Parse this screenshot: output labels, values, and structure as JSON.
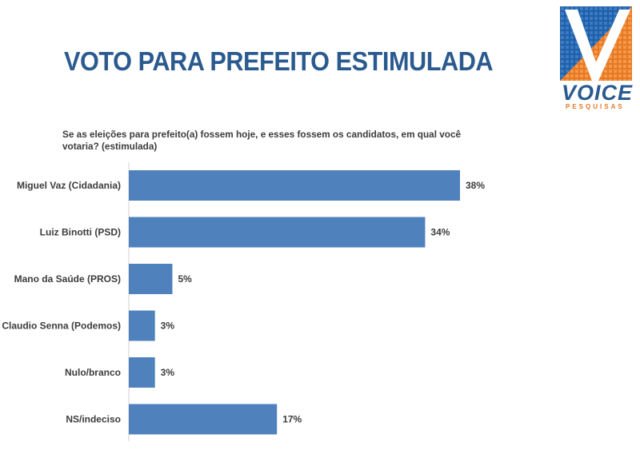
{
  "header": {
    "title": "VOTO PARA PREFEITO ESTIMULADA"
  },
  "logo": {
    "name": "VOICE",
    "tagline": "PESQUISAS",
    "colors": {
      "blue": "#2b5a8f",
      "orange": "#e87722"
    }
  },
  "question": "Se as eleições para prefeito(a) fossem hoje, e esses fossem os candidatos, em qual você votaria? (estimulada)",
  "chart_data": {
    "type": "bar",
    "orientation": "horizontal",
    "title": "VOTO PARA PREFEITO ESTIMULADA",
    "subtitle": "Se as eleições para prefeito(a) fossem hoje, e esses fossem os candidatos, em qual você votaria? (estimulada)",
    "categories": [
      "Miguel Vaz (Cidadania)",
      "Luiz Binotti (PSD)",
      "Mano da Saúde (PROS)",
      "Claudio Senna (Podemos)",
      "Nulo/branco",
      "NS/indeciso"
    ],
    "values": [
      38,
      34,
      5,
      3,
      3,
      17
    ],
    "value_labels": [
      "38%",
      "34%",
      "5%",
      "3%",
      "3%",
      "17%"
    ],
    "unit": "%",
    "xlim": [
      0,
      38
    ],
    "bar_color": "#4f81bd",
    "grid": false,
    "legend": "none"
  }
}
